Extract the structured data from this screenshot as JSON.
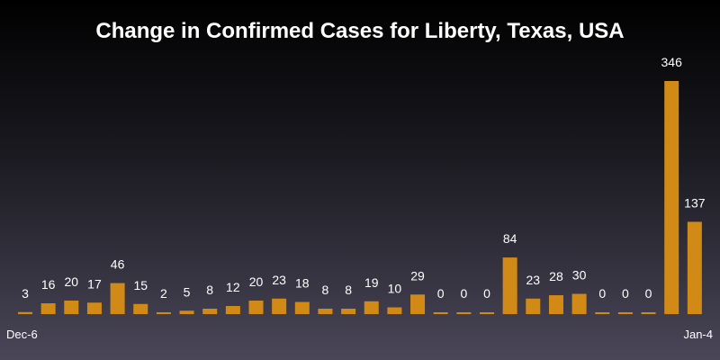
{
  "chart_data": {
    "type": "bar",
    "title": "Change in Confirmed Cases for Liberty, Texas, USA",
    "xlabel": "",
    "ylabel": "",
    "x_tick_labels": [
      "Dec-6",
      "Jan-4"
    ],
    "values": [
      3,
      16,
      20,
      17,
      46,
      15,
      2,
      5,
      8,
      12,
      20,
      23,
      18,
      8,
      8,
      19,
      10,
      29,
      0,
      0,
      0,
      84,
      23,
      28,
      30,
      0,
      0,
      0,
      346,
      137
    ],
    "ylim": [
      0,
      346
    ],
    "grid": false,
    "legend": "none",
    "colors": {
      "bar": "#d28a17",
      "text": "#ffffff"
    }
  }
}
